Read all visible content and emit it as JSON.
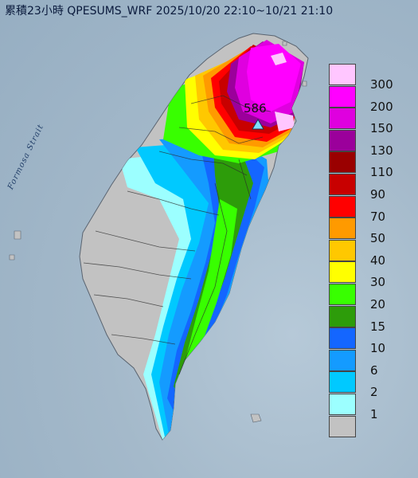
{
  "title": "累積23小時 QPESUMS_WRF 2025/10/20 22:10~10/21 21:10",
  "sea_label": "Formosa Strait",
  "max_marker": {
    "value": "586",
    "icon": "triangle-marker-icon"
  },
  "legend": {
    "colors": [
      "#ffc6ff",
      "#ff00ff",
      "#df00df",
      "#9b009b",
      "#9a0000",
      "#c80000",
      "#ff0000",
      "#ff9a00",
      "#ffc800",
      "#ffff00",
      "#38ff00",
      "#2d9c0a",
      "#1466ff",
      "#149bff",
      "#00c9ff",
      "#9cffff",
      "#c2c2c2"
    ],
    "labels": [
      "300",
      "200",
      "150",
      "130",
      "110",
      "90",
      "70",
      "50",
      "40",
      "30",
      "20",
      "15",
      "10",
      "6",
      "2",
      "1"
    ]
  },
  "rain_palette": {
    "p300": "#ffc6ff",
    "p200": "#ff00ff",
    "p150": "#df00df",
    "p130": "#9b009b",
    "p90": "#c80000",
    "p70": "#ff0000",
    "p50": "#ff9a00",
    "p40": "#ffc800",
    "p30": "#ffff00",
    "p20": "#38ff00",
    "p15": "#2d9c0a",
    "p10": "#1466ff",
    "p6": "#149bff",
    "p2": "#00c9ff",
    "p1": "#9cffff",
    "p0": "#c2c2c2"
  }
}
